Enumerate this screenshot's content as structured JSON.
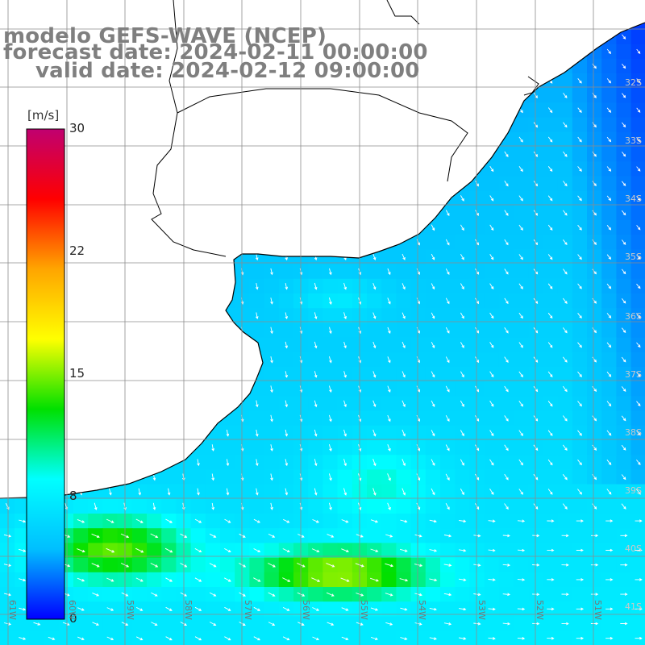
{
  "titles": {
    "line1": "modelo GEFS-WAVE (NCEP)",
    "line2": "forecast date: 2024-02-11 00:00:00",
    "line3": "valid date: 2024-02-12 09:00:00"
  },
  "colorbar": {
    "unit": "[m/s]",
    "min": 0,
    "max": 30,
    "ticks": [
      "30",
      "22",
      "15",
      "8",
      "0"
    ],
    "tick_values": [
      30,
      22,
      15,
      8,
      0
    ],
    "colors": [
      "#0000ff",
      "#00bfff",
      "#00ffff",
      "#00e000",
      "#ffff00",
      "#ffa500",
      "#ff0000",
      "#c00070"
    ]
  },
  "lat_labels": [
    "32S",
    "33S",
    "34S",
    "35S",
    "36S",
    "37S",
    "38S",
    "39S",
    "40S",
    "41S"
  ],
  "lon_labels": [
    "61W",
    "60W",
    "59W",
    "58W",
    "57W",
    "56W",
    "55W",
    "54W",
    "53W",
    "52W",
    "51W"
  ],
  "map": {
    "land_color": "#ffffff",
    "coastline_color": "#000000",
    "grid_color": "#8c8c8c",
    "arrow_color": "#ffffff",
    "field_description": "wind speed with direction arrows"
  }
}
